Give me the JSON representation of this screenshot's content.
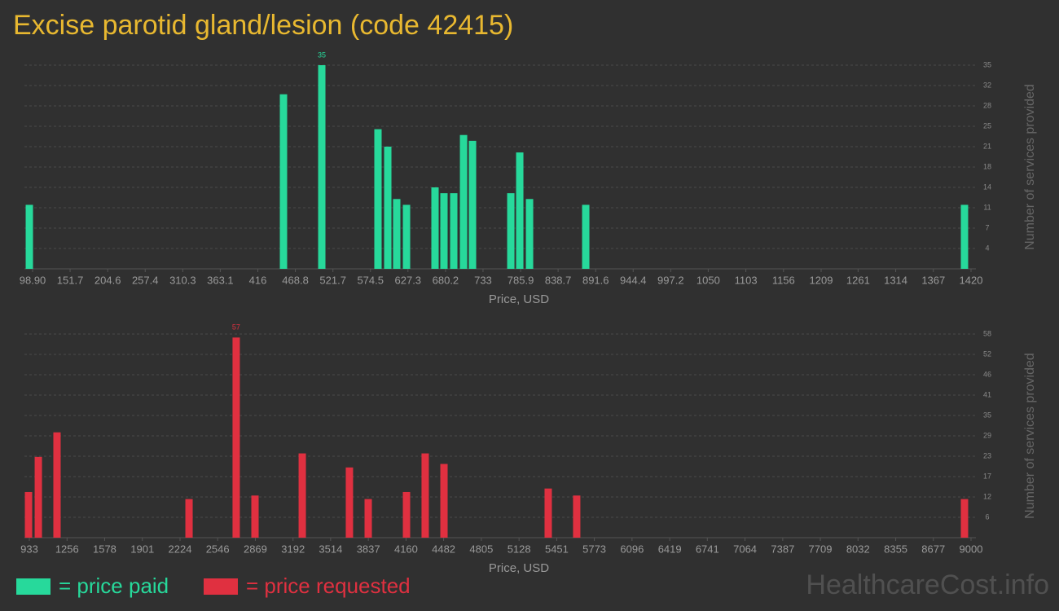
{
  "title": "Excise parotid gland/lesion (code 42415)",
  "watermark": "HealthcareCost.info",
  "chart_data": [
    {
      "type": "bar",
      "name": "= price paid",
      "color": "#27d99b",
      "xlabel": "Price, USD",
      "ylabel": "Number of services provided",
      "x": [
        94.3,
        452.1,
        506.0,
        585.1,
        598.9,
        611.5,
        625.3,
        665.4,
        678.0,
        691.8,
        705.6,
        718.2,
        772.1,
        784.7,
        798.5,
        877.6,
        1410.8
      ],
      "values": [
        11,
        30,
        35,
        24,
        21,
        12,
        11,
        14,
        13,
        13,
        23,
        22,
        13,
        20,
        12,
        11,
        11
      ],
      "xlim": [
        87.4,
        1420
      ],
      "xticks": [
        {
          "value": 98.9,
          "label": "98.90"
        },
        151.7,
        204.6,
        257.4,
        310.3,
        363.1,
        416,
        468.8,
        521.7,
        574.5,
        627.3,
        680.2,
        733,
        785.9,
        838.7,
        891.6,
        944.4,
        997.2,
        1050,
        1103,
        1156,
        1209,
        1261,
        1314,
        1367,
        1420
      ],
      "ylim": [
        0,
        35
      ],
      "yticks": [
        {
          "value": 3.5,
          "label": "4"
        },
        7,
        {
          "value": 10.5,
          "label": "11"
        },
        14,
        {
          "value": 17.5,
          "label": "18"
        },
        21,
        {
          "value": 24.5,
          "label": "25"
        },
        28,
        {
          "value": 31.5,
          "label": "32"
        },
        35
      ],
      "grid": true
    },
    {
      "type": "bar",
      "name": "= price requested",
      "color": "#e03040",
      "xlabel": "Price, USD",
      "ylabel": "Number of services provided",
      "x": [
        926,
        1010,
        1170,
        2301,
        2705,
        2866,
        3271,
        3675,
        3836,
        4164,
        4324,
        4485,
        5378,
        5622,
        8944
      ],
      "values": [
        13,
        23,
        30,
        11,
        57,
        12,
        24,
        20,
        11,
        13,
        24,
        21,
        14,
        12,
        11
      ],
      "xlim": [
        891,
        9000
      ],
      "xticks": [
        933,
        1256,
        1578,
        1901,
        2224,
        2546,
        2869,
        3192,
        3514,
        3837,
        4160,
        4482,
        4805,
        5128,
        5451,
        5773,
        6096,
        6419,
        6741,
        7064,
        7387,
        7709,
        8032,
        8355,
        8677,
        9000
      ],
      "ylim": [
        0,
        58
      ],
      "yticks": [
        {
          "value": 5.8,
          "label": "6"
        },
        {
          "value": 11.6,
          "label": "12"
        },
        {
          "value": 17.4,
          "label": "17"
        },
        {
          "value": 23.2,
          "label": "23"
        },
        29,
        {
          "value": 34.8,
          "label": "35"
        },
        {
          "value": 40.6,
          "label": "41"
        },
        {
          "value": 46.4,
          "label": "46"
        },
        {
          "value": 52.2,
          "label": "52"
        },
        58
      ],
      "grid": true
    }
  ]
}
